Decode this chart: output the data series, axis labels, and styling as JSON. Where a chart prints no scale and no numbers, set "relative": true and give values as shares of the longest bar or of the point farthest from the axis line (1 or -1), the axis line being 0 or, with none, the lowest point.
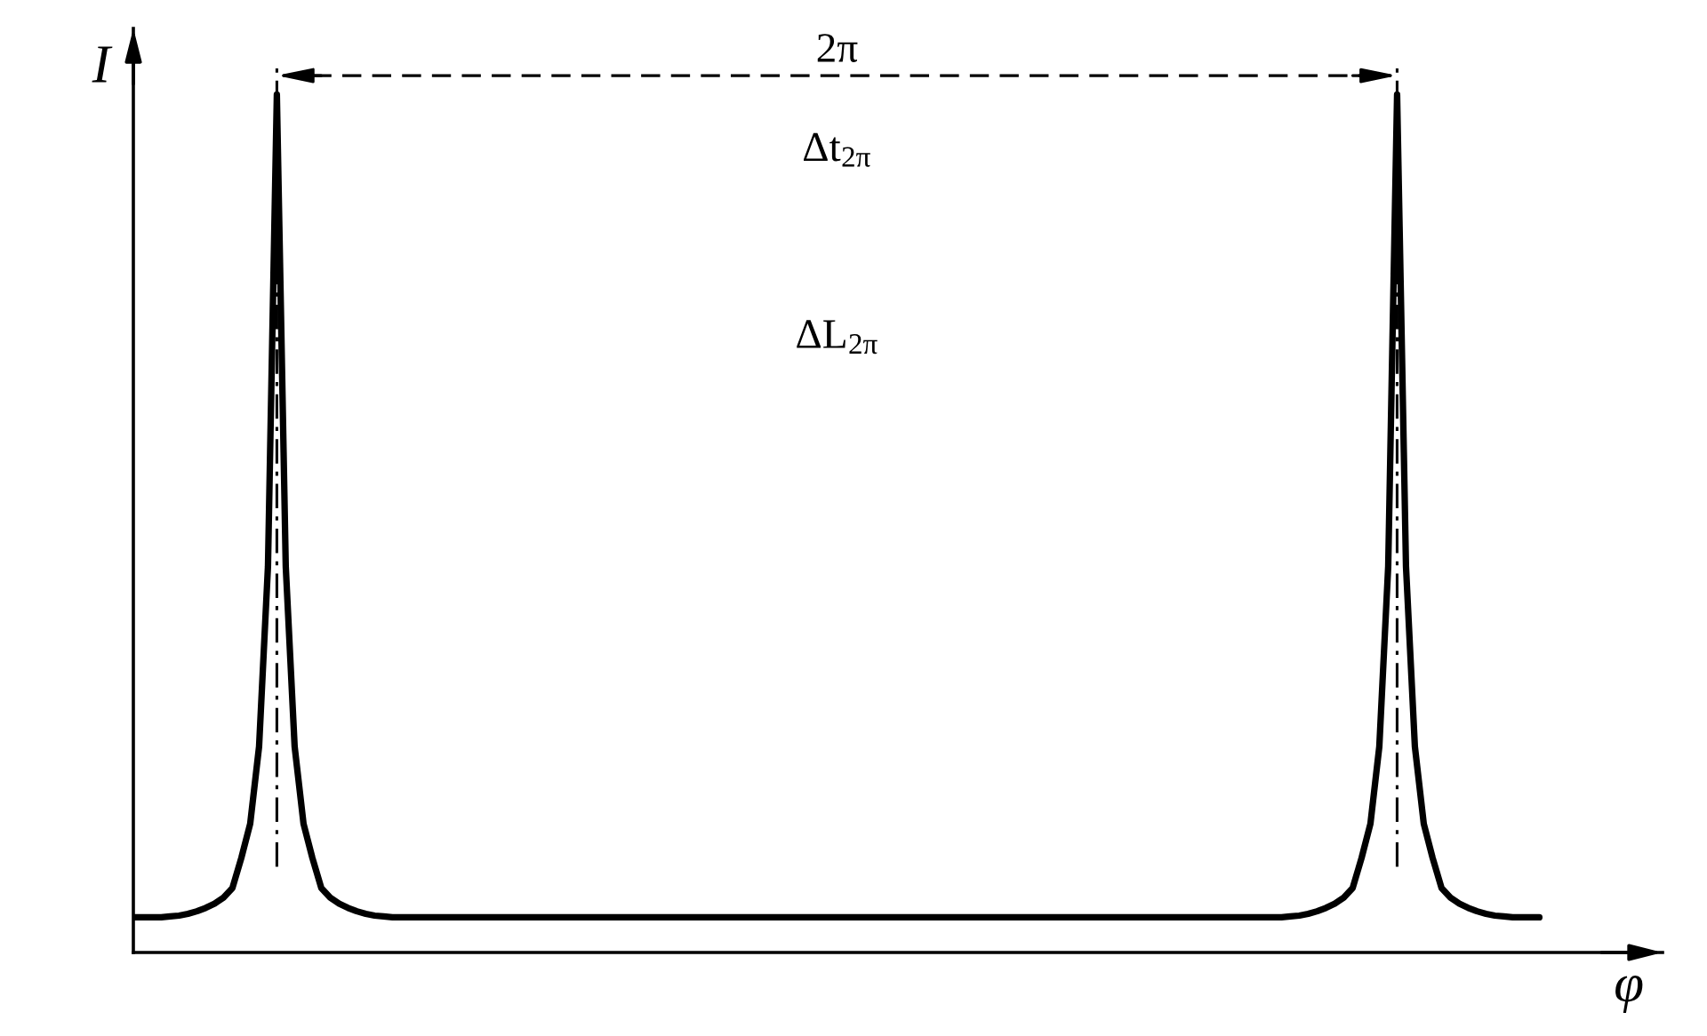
{
  "chart_data": {
    "type": "line",
    "relative": true,
    "xlabel": "φ",
    "ylabel": "I",
    "annotations": [
      "2π",
      "Δt$_{2π}$",
      "ΔL$_{2π}$"
    ],
    "categories": [
      null,
      null,
      null,
      null,
      null,
      null,
      null,
      null,
      null,
      null,
      null,
      null,
      null,
      null,
      null,
      null,
      null,
      null,
      null,
      null,
      null,
      null,
      null,
      null,
      null,
      null,
      null,
      null,
      null,
      null,
      null,
      null,
      null,
      null,
      null,
      null,
      null,
      null,
      null,
      null,
      null,
      null,
      null,
      null,
      null,
      null,
      null,
      null,
      null,
      null,
      null,
      null,
      null,
      null,
      null,
      null,
      null,
      null,
      null,
      null,
      null,
      null,
      null,
      null,
      null,
      null,
      null,
      null,
      null,
      null,
      null,
      null,
      null,
      null,
      null,
      null,
      null,
      null,
      null,
      null,
      null,
      null,
      null,
      null,
      null,
      null,
      null,
      null,
      null,
      null,
      null,
      null,
      null,
      null,
      null,
      null,
      null,
      null,
      null,
      null,
      null,
      null,
      null,
      null,
      null,
      null,
      null,
      null,
      null,
      null,
      null,
      null,
      null,
      null,
      null,
      null,
      null,
      null,
      null,
      null,
      null,
      null,
      null,
      null,
      null,
      null,
      null,
      null,
      null,
      null,
      null,
      null,
      null,
      null,
      null,
      null,
      null,
      null,
      null,
      null,
      null,
      null,
      null,
      null,
      null,
      null,
      null,
      null,
      null,
      null,
      null,
      null,
      null,
      null,
      null,
      null,
      null,
      null,
      null
    ],
    "series": [
      {
        "color": "#000000",
        "values": [
          0.041,
          0.041,
          0.041,
          0.041,
          0.042,
          0.043,
          0.045,
          0.048,
          0.052,
          0.057,
          0.064,
          0.075,
          0.11,
          0.15,
          0.24,
          0.45,
          1.0,
          0.45,
          0.24,
          0.15,
          0.11,
          0.075,
          0.064,
          0.057,
          0.052,
          0.048,
          0.045,
          0.043,
          0.042,
          0.041,
          0.041,
          0.041,
          0.041,
          0.041,
          0.041,
          0.041,
          0.041,
          0.041,
          0.041,
          0.041,
          0.041,
          0.041,
          0.041,
          0.041,
          0.041,
          0.041,
          0.041,
          0.041,
          0.041,
          0.041,
          0.041,
          0.041,
          0.041,
          0.041,
          0.041,
          0.041,
          0.041,
          0.041,
          0.041,
          0.041,
          0.041,
          0.041,
          0.041,
          0.041,
          0.041,
          0.041,
          0.041,
          0.041,
          0.041,
          0.041,
          0.041,
          0.041,
          0.041,
          0.041,
          0.041,
          0.041,
          0.041,
          0.041,
          0.041,
          0.041,
          0.041,
          0.041,
          0.041,
          0.041,
          0.041,
          0.041,
          0.041,
          0.041,
          0.041,
          0.041,
          0.041,
          0.041,
          0.041,
          0.041,
          0.041,
          0.041,
          0.041,
          0.041,
          0.041,
          0.041,
          0.041,
          0.041,
          0.041,
          0.041,
          0.041,
          0.041,
          0.041,
          0.041,
          0.041,
          0.041,
          0.041,
          0.041,
          0.041,
          0.041,
          0.041,
          0.041,
          0.041,
          0.041,
          0.041,
          0.041,
          0.041,
          0.041,
          0.041,
          0.041,
          0.041,
          0.041,
          0.041,
          0.041,
          0.041,
          0.041,
          0.042,
          0.043,
          0.045,
          0.048,
          0.052,
          0.057,
          0.064,
          0.075,
          0.11,
          0.15,
          0.24,
          0.45,
          1.0,
          0.45,
          0.24,
          0.15,
          0.11,
          0.075,
          0.064,
          0.057,
          0.052,
          0.048,
          0.045,
          0.043,
          0.042,
          0.041,
          0.041,
          0.041,
          0.041
        ]
      }
    ]
  }
}
